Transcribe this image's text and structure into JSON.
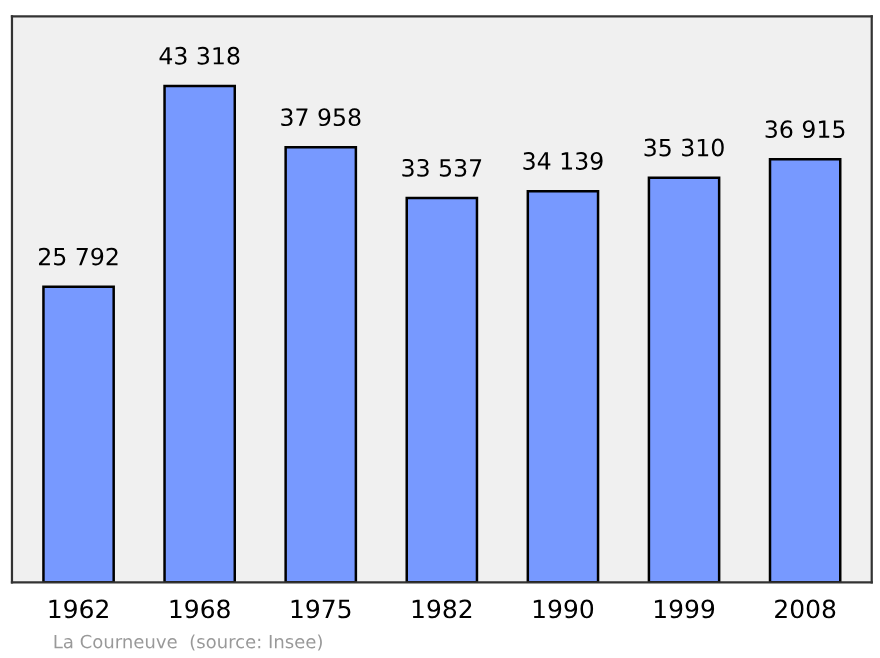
{
  "chart_data": {
    "type": "bar",
    "categories": [
      "1962",
      "1968",
      "1975",
      "1982",
      "1990",
      "1999",
      "2008"
    ],
    "values": [
      25792,
      43318,
      37958,
      33537,
      34139,
      35310,
      36915
    ],
    "value_labels": [
      "25 792",
      "43 318",
      "37 958",
      "33 537",
      "34 139",
      "35 310",
      "36 915"
    ],
    "color": "#7799ff",
    "grid": false,
    "legend": false,
    "annotations": [
      "La Courneuve",
      "(source: Insee)"
    ]
  }
}
